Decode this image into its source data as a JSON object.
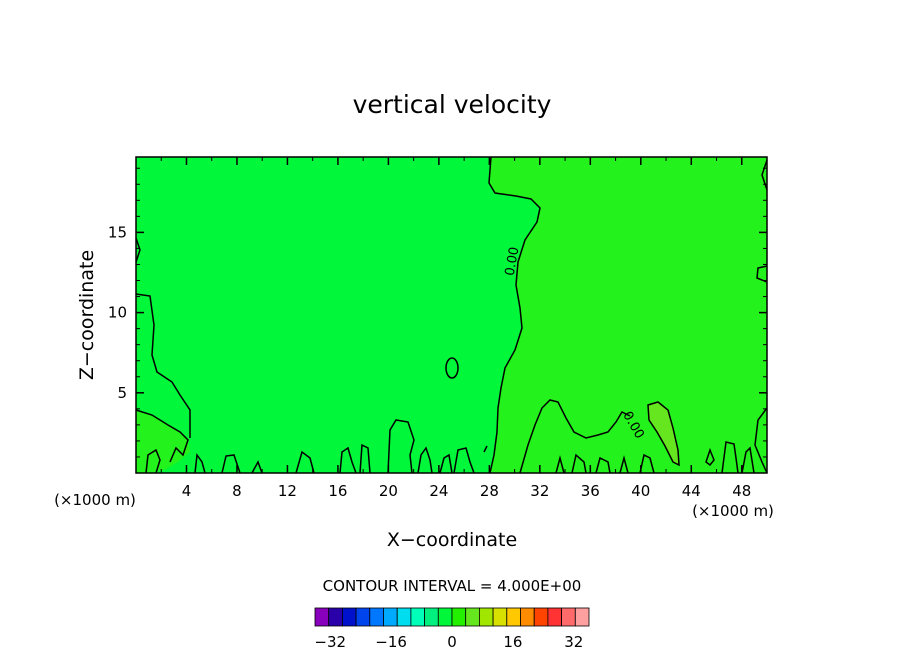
{
  "chart_data": {
    "type": "heatmap",
    "title": "vertical velocity",
    "xlabel": "X−coordinate",
    "ylabel": "Z−coordinate",
    "x_unit_left": "(×1000 m)",
    "x_unit_right": "(×1000 m)",
    "xlim": [
      0,
      50
    ],
    "ylim": [
      0,
      19.7
    ],
    "x_ticks": [
      4,
      8,
      12,
      16,
      20,
      24,
      28,
      32,
      36,
      40,
      44,
      48
    ],
    "y_ticks": [
      5,
      10,
      15
    ],
    "contour_interval_text": "CONTOUR INTERVAL = 4.000E+00",
    "contour_label": "0.00",
    "contour_value": 0,
    "field": {
      "background_value": 0,
      "background_color": "#00f73a",
      "right_region_value": 0.8,
      "right_region_color": "#24f21c",
      "high_patch_value": 4,
      "high_patch_color": "#66e61e"
    },
    "colorbar": {
      "min": -36,
      "max": 36,
      "step": 4,
      "tick_labels": [
        "−32",
        "−16",
        "0",
        "16",
        "32"
      ],
      "tick_values": [
        -32,
        -16,
        0,
        16,
        32
      ],
      "colors": [
        "#8800bb",
        "#2a00a8",
        "#0011cc",
        "#0044ee",
        "#0077ff",
        "#00aaff",
        "#00ddee",
        "#00ffb8",
        "#00f080",
        "#00f73a",
        "#22f000",
        "#66e61e",
        "#a0e600",
        "#d8e000",
        "#ffc800",
        "#ff8c00",
        "#ff4400",
        "#ff3333",
        "#ff6a6a",
        "#ffa0a0"
      ]
    }
  }
}
